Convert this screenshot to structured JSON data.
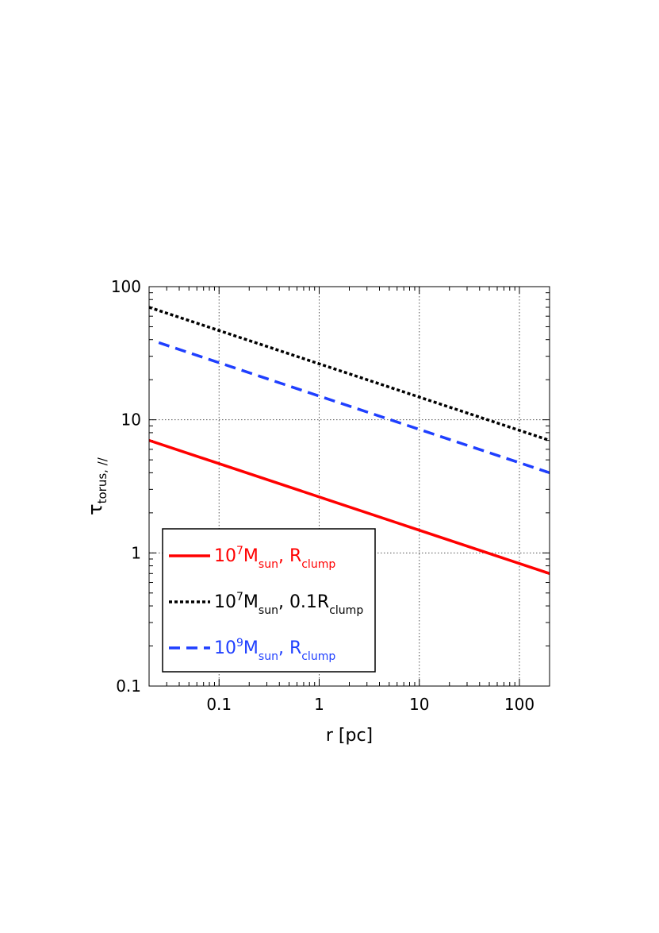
{
  "chart_data": {
    "type": "line",
    "xlabel": "r [pc]",
    "ylabel": "τ",
    "ylabel_sub": "torus, //",
    "xscale": "log",
    "yscale": "log",
    "xlim": [
      0.02,
      200
    ],
    "ylim": [
      0.1,
      100
    ],
    "grid": true,
    "grid_style": "dotted",
    "xticks": [
      0.1,
      1,
      10,
      100
    ],
    "xtick_labels": [
      "0.1",
      "1",
      "10",
      "100"
    ],
    "yticks": [
      0.1,
      1,
      10,
      100
    ],
    "ytick_labels": [
      "0.1",
      "1",
      "10",
      "100"
    ],
    "legend_position": "lower-left",
    "series": [
      {
        "name": "10^7 M_sun, R_clump",
        "label_parts": [
          {
            "t": "10",
            "s": "normal"
          },
          {
            "t": "7",
            "s": "sup"
          },
          {
            "t": "M",
            "s": "normal"
          },
          {
            "t": "sun",
            "s": "sub"
          },
          {
            "t": ", R",
            "s": "normal"
          },
          {
            "t": "clump",
            "s": "sub"
          }
        ],
        "color": "#ff0000",
        "style": "solid",
        "x": [
          0.02,
          200
        ],
        "y": [
          7.0,
          0.7
        ]
      },
      {
        "name": "10^7 M_sun, 0.1 R_clump",
        "label_parts": [
          {
            "t": "10",
            "s": "normal"
          },
          {
            "t": "7",
            "s": "sup"
          },
          {
            "t": "M",
            "s": "normal"
          },
          {
            "t": "sun",
            "s": "sub"
          },
          {
            "t": ", 0.1R",
            "s": "normal"
          },
          {
            "t": "clump",
            "s": "sub"
          }
        ],
        "color": "#000000",
        "style": "dotted",
        "x": [
          0.02,
          200
        ],
        "y": [
          70.0,
          7.0
        ]
      },
      {
        "name": "10^9 M_sun, R_clump",
        "label_parts": [
          {
            "t": "10",
            "s": "normal"
          },
          {
            "t": "9",
            "s": "sup"
          },
          {
            "t": "M",
            "s": "normal"
          },
          {
            "t": "sun",
            "s": "sub"
          },
          {
            "t": ", R",
            "s": "normal"
          },
          {
            "t": "clump",
            "s": "sub"
          }
        ],
        "color": "#1f3fff",
        "style": "dashed",
        "x": [
          0.025,
          200
        ],
        "y": [
          38.0,
          4.0
        ]
      }
    ]
  }
}
